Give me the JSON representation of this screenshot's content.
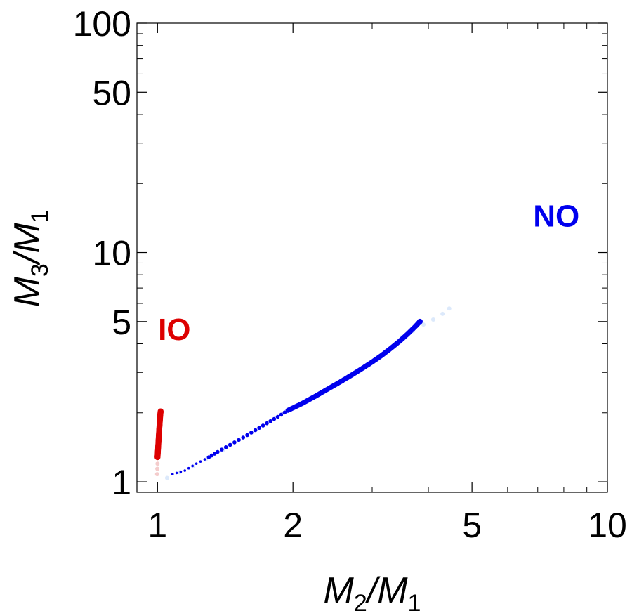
{
  "chart_data": {
    "type": "scatter",
    "scale": {
      "x": "log",
      "y": "log"
    },
    "xlim": [
      0.9,
      10
    ],
    "ylim": [
      0.9,
      100
    ],
    "x_major_ticks": [
      {
        "value": 1,
        "label": "1"
      },
      {
        "value": 2,
        "label": "2"
      },
      {
        "value": 5,
        "label": "5"
      },
      {
        "value": 10,
        "label": "10"
      }
    ],
    "y_major_ticks": [
      {
        "value": 1,
        "label": "1"
      },
      {
        "value": 5,
        "label": "5"
      },
      {
        "value": 10,
        "label": "10"
      },
      {
        "value": 50,
        "label": "50"
      },
      {
        "value": 100,
        "label": "100"
      }
    ],
    "x_minor_ticks": [
      3,
      4,
      6,
      7,
      8,
      9
    ],
    "y_minor_ticks": [
      2,
      3,
      4,
      6,
      7,
      8,
      9,
      20,
      30,
      40,
      60,
      70,
      80,
      90
    ],
    "xlabel": {
      "main": "M",
      "sub": "2",
      "sep": "/",
      "main2": "M",
      "sub2": "1"
    },
    "ylabel": {
      "main": "M",
      "sub": "3",
      "sep": "/",
      "main2": "M",
      "sub2": "1"
    },
    "grid": false,
    "series": [
      {
        "name": "NO",
        "label": "NO",
        "color": "#0000ee",
        "faint_color": "#dce9fb",
        "label_position": {
          "x": 7.7,
          "y": 13
        },
        "points": [
          [
            1.08,
            1.08
          ],
          [
            1.15,
            1.12
          ],
          [
            1.22,
            1.2
          ],
          [
            1.3,
            1.28
          ],
          [
            1.36,
            1.35
          ],
          [
            1.45,
            1.45
          ],
          [
            1.55,
            1.56
          ],
          [
            1.65,
            1.68
          ],
          [
            1.75,
            1.8
          ],
          [
            1.85,
            1.92
          ],
          [
            1.95,
            2.05
          ],
          [
            2.1,
            2.2
          ],
          [
            2.25,
            2.37
          ],
          [
            2.4,
            2.55
          ],
          [
            2.55,
            2.73
          ],
          [
            2.7,
            2.92
          ],
          [
            2.85,
            3.12
          ],
          [
            3.0,
            3.33
          ],
          [
            3.15,
            3.56
          ],
          [
            3.3,
            3.82
          ],
          [
            3.45,
            4.1
          ],
          [
            3.6,
            4.42
          ],
          [
            3.75,
            4.78
          ],
          [
            3.83,
            5.0
          ]
        ],
        "faint_points": [
          [
            1.05,
            1.04
          ],
          [
            1.12,
            1.1
          ],
          [
            1.2,
            1.17
          ],
          [
            1.28,
            1.25
          ],
          [
            1.4,
            1.38
          ],
          [
            3.5,
            4.3
          ],
          [
            3.7,
            4.55
          ],
          [
            3.9,
            4.85
          ],
          [
            4.1,
            5.1
          ],
          [
            4.3,
            5.4
          ],
          [
            4.45,
            5.7
          ]
        ]
      },
      {
        "name": "IO",
        "label": "IO",
        "color": "#dd0000",
        "faint_color": "#f4cccc",
        "label_position": {
          "x": 1.09,
          "y": 4.15
        },
        "points": [
          [
            1.0,
            1.28
          ],
          [
            1.002,
            1.36
          ],
          [
            1.004,
            1.45
          ],
          [
            1.006,
            1.55
          ],
          [
            1.008,
            1.65
          ],
          [
            1.01,
            1.75
          ],
          [
            1.012,
            1.85
          ],
          [
            1.014,
            1.95
          ],
          [
            1.016,
            2.03
          ]
        ],
        "faint_points": [
          [
            0.998,
            1.08
          ],
          [
            0.999,
            1.14
          ],
          [
            1.0,
            1.2
          ]
        ]
      }
    ]
  }
}
